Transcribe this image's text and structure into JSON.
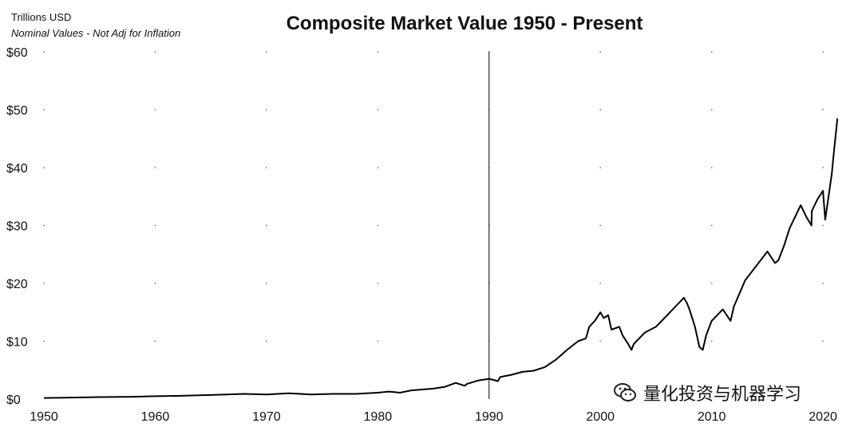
{
  "header": {
    "unit_label": "Trillions USD",
    "subtitle": "Nominal Values - Not Adj for Inflation",
    "title": "Composite Market Value 1950 - Present"
  },
  "watermark": {
    "text": "量化投资与机器学习",
    "icon": "wechat-icon"
  },
  "chart_data": {
    "type": "line",
    "title": "Composite Market Value 1950 - Present",
    "ylabel": "Trillions USD",
    "xlim": [
      1950,
      2021.5
    ],
    "ylim": [
      0,
      60
    ],
    "x_ticks": [
      1950,
      1960,
      1970,
      1980,
      1990,
      2000,
      2010,
      2020
    ],
    "y_ticks": [
      0,
      10,
      20,
      30,
      40,
      50,
      60
    ],
    "y_tick_labels": [
      "$0",
      "$10",
      "$20",
      "$30",
      "$40",
      "$50",
      "$60"
    ],
    "grid": "dotted points",
    "reference_line_x": 1990,
    "line_color": "#000000",
    "series": [
      {
        "x": [
          1950,
          1952,
          1955,
          1958,
          1960,
          1962,
          1965,
          1968,
          1970,
          1972,
          1974,
          1976,
          1978,
          1980,
          1981,
          1982,
          1983,
          1985,
          1986,
          1987,
          1987.8,
          1988,
          1989,
          1990,
          1990.8,
          1991,
          1992,
          1993,
          1994,
          1995,
          1996,
          1997,
          1998,
          1998.7,
          1999,
          1999.5,
          2000,
          2000.3,
          2000.7,
          2001,
          2001.7,
          2002,
          2002.5,
          2002.8,
          2003,
          2004,
          2005,
          2006,
          2007,
          2007.5,
          2007.8,
          2008,
          2008.5,
          2008.9,
          2009.2,
          2009.5,
          2010,
          2010.5,
          2011,
          2011.7,
          2012,
          2013,
          2014,
          2015,
          2015.7,
          2016,
          2016.5,
          2017,
          2018,
          2018.5,
          2018.97,
          2019,
          2019.5,
          2020,
          2020.2,
          2020.5,
          2020.8,
          2021,
          2021.3
        ],
        "y": [
          0.2,
          0.25,
          0.35,
          0.4,
          0.5,
          0.55,
          0.7,
          0.9,
          0.8,
          1.0,
          0.8,
          0.9,
          0.9,
          1.1,
          1.3,
          1.1,
          1.5,
          1.8,
          2.1,
          2.8,
          2.3,
          2.6,
          3.2,
          3.5,
          3.1,
          3.8,
          4.2,
          4.7,
          4.9,
          5.5,
          6.8,
          8.5,
          10.0,
          10.5,
          12.5,
          13.5,
          15.0,
          14.0,
          14.5,
          12.0,
          12.5,
          11.0,
          9.5,
          8.5,
          9.5,
          11.5,
          12.5,
          14.5,
          16.5,
          17.5,
          16.5,
          15.5,
          12.5,
          9.0,
          8.5,
          11.0,
          13.5,
          14.5,
          15.5,
          13.5,
          16.0,
          20.5,
          23.0,
          25.5,
          23.5,
          24.0,
          26.5,
          29.5,
          33.5,
          31.5,
          30.0,
          32.5,
          34.5,
          36.0,
          31.0,
          35.0,
          39.0,
          43.0,
          48.5
        ]
      }
    ]
  }
}
